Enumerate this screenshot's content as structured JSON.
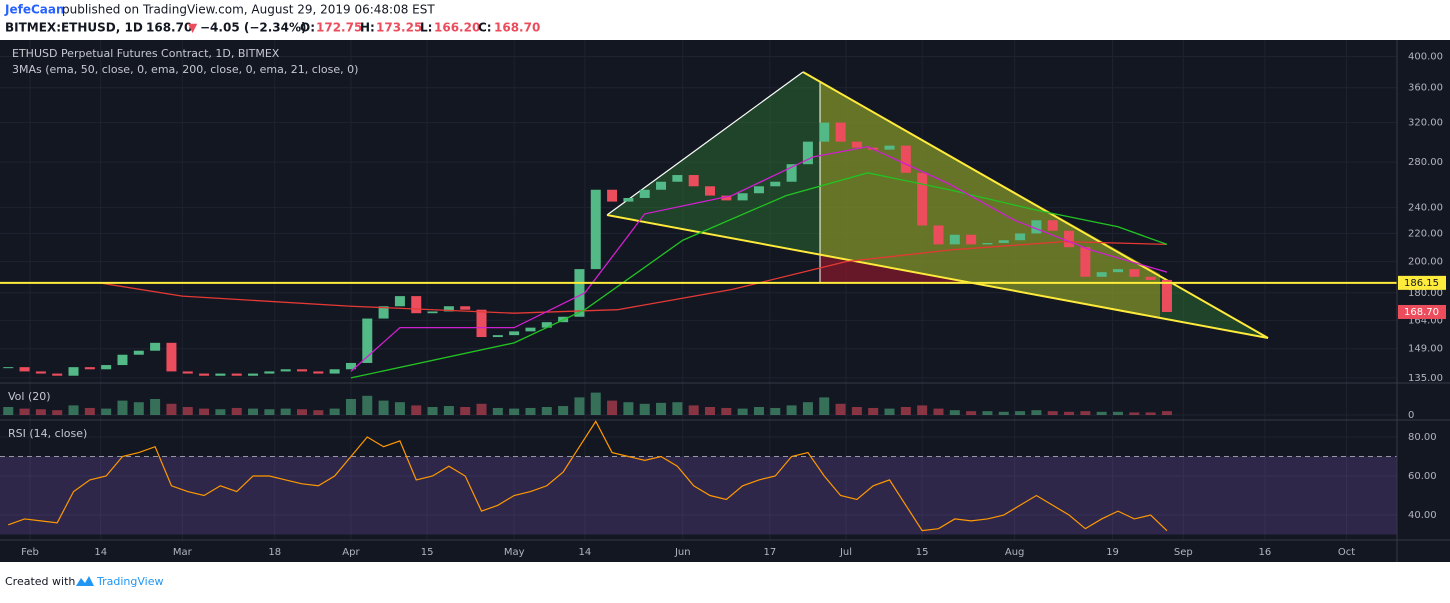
{
  "header": {
    "author": "JefeCaan",
    "published": "published on TradingView.com, August 29, 2019 06:48:08 EST",
    "symbol": "BITMEX:ETHUSD, 1D",
    "price": "168.70",
    "arrow": "▼",
    "change": "−4.05 (−2.34%)",
    "open_label": "O:",
    "open": "172.75",
    "high_label": "H:",
    "high": "173.25",
    "low_label": "L:",
    "low": "166.20",
    "close_label": "C:",
    "close": "168.70"
  },
  "chart_data": [
    {
      "type": "candlestick",
      "title": "ETHUSD Perpetual Futures Contract, 1D, BITMEX",
      "subtitle": "3MAs (ema, 50, close, 0, ema, 200, close, 0, ema, 21, close, 0)",
      "x": [
        "2019-01-28",
        "2019-01-31",
        "2019-02-03",
        "2019-02-06",
        "2019-02-09",
        "2019-02-12",
        "2019-02-15",
        "2019-02-18",
        "2019-02-21",
        "2019-02-24",
        "2019-02-27",
        "2019-03-02",
        "2019-03-05",
        "2019-03-08",
        "2019-03-11",
        "2019-03-14",
        "2019-03-17",
        "2019-03-20",
        "2019-03-23",
        "2019-03-26",
        "2019-03-29",
        "2019-04-01",
        "2019-04-04",
        "2019-04-07",
        "2019-04-10",
        "2019-04-13",
        "2019-04-16",
        "2019-04-19",
        "2019-04-22",
        "2019-04-25",
        "2019-04-28",
        "2019-05-01",
        "2019-05-04",
        "2019-05-07",
        "2019-05-10",
        "2019-05-13",
        "2019-05-16",
        "2019-05-19",
        "2019-05-22",
        "2019-05-25",
        "2019-05-28",
        "2019-05-31",
        "2019-06-03",
        "2019-06-06",
        "2019-06-09",
        "2019-06-12",
        "2019-06-15",
        "2019-06-18",
        "2019-06-21",
        "2019-06-24",
        "2019-06-27",
        "2019-06-30",
        "2019-07-03",
        "2019-07-06",
        "2019-07-09",
        "2019-07-12",
        "2019-07-15",
        "2019-07-18",
        "2019-07-21",
        "2019-07-24",
        "2019-07-27",
        "2019-07-30",
        "2019-08-02",
        "2019-08-05",
        "2019-08-08",
        "2019-08-11",
        "2019-08-14",
        "2019-08-17",
        "2019-08-20",
        "2019-08-23",
        "2019-08-26",
        "2019-08-29"
      ],
      "values": [
        140,
        138,
        137,
        136,
        140,
        139,
        141,
        146,
        148,
        152,
        138,
        137,
        136,
        137,
        136,
        137,
        138,
        139,
        138,
        137,
        139,
        142,
        165,
        172,
        178,
        168,
        169,
        172,
        170,
        155,
        156,
        158,
        160,
        163,
        166,
        195,
        255,
        245,
        248,
        255,
        262,
        268,
        258,
        250,
        246,
        252,
        258,
        262,
        278,
        300,
        320,
        300,
        294,
        292,
        296,
        270,
        226,
        212,
        219,
        212,
        213,
        215,
        220,
        230,
        222,
        210,
        190,
        193,
        195,
        190,
        188,
        168.7
      ],
      "up_color": "#53b987",
      "down_color": "#eb4d5c",
      "log": true,
      "ylim": [
        132.7,
        423
      ],
      "yticks": [
        {
          "value": 400,
          "label": "400.00"
        },
        {
          "value": 360,
          "label": "360.00"
        },
        {
          "value": 320,
          "label": "320.00"
        },
        {
          "value": 280,
          "label": "280.00"
        },
        {
          "value": 240,
          "label": "240.00"
        },
        {
          "value": 220,
          "label": "220.00"
        },
        {
          "value": 200,
          "label": "200.00"
        },
        {
          "value": 180,
          "label": "180.00"
        },
        {
          "value": 164,
          "label": "164.00"
        },
        {
          "value": 149,
          "label": "149.00"
        },
        {
          "value": 135,
          "label": "135.00"
        }
      ],
      "xticks": [
        {
          "value": "2019-02-01",
          "label": "Feb"
        },
        {
          "value": "2019-02-14",
          "label": "14"
        },
        {
          "value": "2019-03-01",
          "label": "Mar"
        },
        {
          "value": "2019-03-18",
          "label": "18"
        },
        {
          "value": "2019-04-01",
          "label": "Apr"
        },
        {
          "value": "2019-04-15",
          "label": "15"
        },
        {
          "value": "2019-05-01",
          "label": "May"
        },
        {
          "value": "2019-05-14",
          "label": "14"
        },
        {
          "value": "2019-06-01",
          "label": "Jun"
        },
        {
          "value": "2019-06-17",
          "label": "17"
        },
        {
          "value": "2019-07-01",
          "label": "Jul"
        },
        {
          "value": "2019-07-15",
          "label": "15"
        },
        {
          "value": "2019-08-01",
          "label": "Aug"
        },
        {
          "value": "2019-08-19",
          "label": "19"
        },
        {
          "value": "2019-09-01",
          "label": "Sep"
        },
        {
          "value": "2019-09-16",
          "label": "16"
        },
        {
          "value": "2019-10-01",
          "label": "Oct"
        }
      ],
      "grid": true,
      "hline": {
        "value": 186.15,
        "color": "#ffeb3b"
      },
      "last_price": {
        "value": 168.7,
        "label": "168.70"
      },
      "overlays": [
        {
          "color": "#e53935",
          "x": [
            "2019-02-14",
            "2019-03-01",
            "2019-04-01",
            "2019-05-01",
            "2019-05-20",
            "2019-06-10",
            "2019-07-01",
            "2019-07-20",
            "2019-08-10",
            "2019-08-29"
          ],
          "values": [
            186,
            178,
            172,
            168,
            170,
            182,
            200,
            208,
            214,
            212
          ]
        },
        {
          "color": "#22c322",
          "x": [
            "2019-04-01",
            "2019-05-01",
            "2019-05-14",
            "2019-06-01",
            "2019-06-20",
            "2019-07-05",
            "2019-07-20",
            "2019-08-05",
            "2019-08-20",
            "2019-08-29"
          ],
          "values": [
            135,
            152,
            170,
            215,
            250,
            270,
            255,
            238,
            225,
            212
          ]
        },
        {
          "color": "#d020d0",
          "x": [
            "2019-04-01",
            "2019-04-10",
            "2019-05-01",
            "2019-05-14",
            "2019-05-25",
            "2019-06-10",
            "2019-06-25",
            "2019-07-05",
            "2019-07-20",
            "2019-08-01",
            "2019-08-15",
            "2019-08-29"
          ],
          "values": [
            138,
            160,
            160,
            180,
            235,
            250,
            285,
            295,
            260,
            230,
            208,
            193
          ]
        }
      ]
    },
    {
      "type": "bar",
      "title": "Vol (20)",
      "x": [
        "2019-01-28",
        "2019-01-31",
        "2019-02-03",
        "2019-02-06",
        "2019-02-09",
        "2019-02-12",
        "2019-02-15",
        "2019-02-18",
        "2019-02-21",
        "2019-02-24",
        "2019-02-27",
        "2019-03-02",
        "2019-03-05",
        "2019-03-08",
        "2019-03-11",
        "2019-03-14",
        "2019-03-17",
        "2019-03-20",
        "2019-03-23",
        "2019-03-26",
        "2019-03-29",
        "2019-04-01",
        "2019-04-04",
        "2019-04-07",
        "2019-04-10",
        "2019-04-13",
        "2019-04-16",
        "2019-04-19",
        "2019-04-22",
        "2019-04-25",
        "2019-04-28",
        "2019-05-01",
        "2019-05-04",
        "2019-05-07",
        "2019-05-10",
        "2019-05-13",
        "2019-05-16",
        "2019-05-19",
        "2019-05-22",
        "2019-05-25",
        "2019-05-28",
        "2019-05-31",
        "2019-06-03",
        "2019-06-06",
        "2019-06-09",
        "2019-06-12",
        "2019-06-15",
        "2019-06-18",
        "2019-06-21",
        "2019-06-24",
        "2019-06-27",
        "2019-06-30",
        "2019-07-03",
        "2019-07-06",
        "2019-07-09",
        "2019-07-12",
        "2019-07-15",
        "2019-07-18",
        "2019-07-21",
        "2019-07-24",
        "2019-07-27",
        "2019-07-30",
        "2019-08-02",
        "2019-08-05",
        "2019-08-08",
        "2019-08-11",
        "2019-08-14",
        "2019-08-17",
        "2019-08-20",
        "2019-08-23",
        "2019-08-26",
        "2019-08-29"
      ],
      "values": [
        25,
        20,
        18,
        15,
        30,
        22,
        20,
        45,
        40,
        50,
        35,
        25,
        20,
        18,
        22,
        20,
        18,
        20,
        18,
        15,
        20,
        50,
        60,
        45,
        40,
        30,
        25,
        28,
        25,
        35,
        22,
        20,
        22,
        25,
        28,
        55,
        70,
        45,
        40,
        35,
        38,
        40,
        30,
        25,
        22,
        20,
        25,
        22,
        30,
        40,
        55,
        35,
        25,
        22,
        20,
        25,
        30,
        20,
        15,
        12,
        12,
        10,
        12,
        15,
        12,
        10,
        12,
        10,
        10,
        8,
        8,
        12
      ],
      "ylim": [
        0,
        100
      ],
      "yticks": [
        0
      ]
    },
    {
      "type": "line",
      "title": "RSI (14, close)",
      "color": "#ff9800",
      "x": [
        "2019-01-28",
        "2019-01-31",
        "2019-02-03",
        "2019-02-06",
        "2019-02-09",
        "2019-02-12",
        "2019-02-15",
        "2019-02-18",
        "2019-02-21",
        "2019-02-24",
        "2019-02-27",
        "2019-03-02",
        "2019-03-05",
        "2019-03-08",
        "2019-03-11",
        "2019-03-14",
        "2019-03-17",
        "2019-03-20",
        "2019-03-23",
        "2019-03-26",
        "2019-03-29",
        "2019-04-01",
        "2019-04-04",
        "2019-04-07",
        "2019-04-10",
        "2019-04-13",
        "2019-04-16",
        "2019-04-19",
        "2019-04-22",
        "2019-04-25",
        "2019-04-28",
        "2019-05-01",
        "2019-05-04",
        "2019-05-07",
        "2019-05-10",
        "2019-05-13",
        "2019-05-16",
        "2019-05-19",
        "2019-05-22",
        "2019-05-25",
        "2019-05-28",
        "2019-05-31",
        "2019-06-03",
        "2019-06-06",
        "2019-06-09",
        "2019-06-12",
        "2019-06-15",
        "2019-06-18",
        "2019-06-21",
        "2019-06-24",
        "2019-06-27",
        "2019-06-30",
        "2019-07-03",
        "2019-07-06",
        "2019-07-09",
        "2019-07-12",
        "2019-07-15",
        "2019-07-18",
        "2019-07-21",
        "2019-07-24",
        "2019-07-27",
        "2019-07-30",
        "2019-08-02",
        "2019-08-05",
        "2019-08-08",
        "2019-08-11",
        "2019-08-14",
        "2019-08-17",
        "2019-08-20",
        "2019-08-23",
        "2019-08-26",
        "2019-08-29"
      ],
      "values": [
        35,
        38,
        37,
        36,
        52,
        58,
        60,
        70,
        72,
        75,
        55,
        52,
        50,
        55,
        52,
        60,
        60,
        58,
        56,
        55,
        60,
        70,
        80,
        75,
        78,
        58,
        60,
        65,
        60,
        42,
        45,
        50,
        52,
        55,
        62,
        75,
        88,
        72,
        70,
        68,
        70,
        65,
        55,
        50,
        48,
        55,
        58,
        60,
        70,
        72,
        60,
        50,
        48,
        55,
        58,
        45,
        32,
        33,
        38,
        37,
        38,
        40,
        45,
        50,
        45,
        40,
        33,
        38,
        42,
        38,
        40,
        32
      ],
      "ylim": [
        27.2,
        88.7
      ],
      "yticks": [
        {
          "value": 80,
          "label": "80.00"
        },
        {
          "value": 60,
          "label": "60.00"
        },
        {
          "value": 40,
          "label": "40.00"
        }
      ],
      "band": [
        30,
        70
      ],
      "band_color": "#7e57c2",
      "mid_line": 70
    }
  ],
  "footer": {
    "text": "Created with",
    "brand": "TradingView"
  }
}
